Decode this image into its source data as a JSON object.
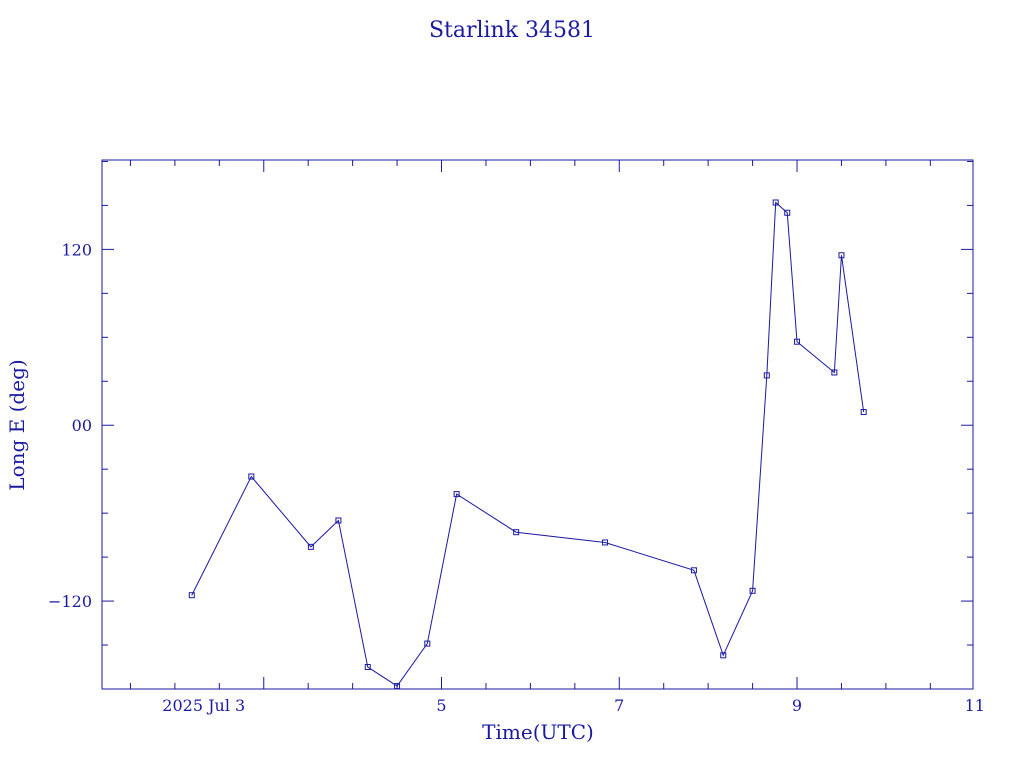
{
  "chart_data": {
    "type": "line",
    "title": "Starlink 34581",
    "xlabel": "Time(UTC)",
    "ylabel": "Long E (deg)",
    "x_tick_labels": [
      {
        "x": 3,
        "label": "2025 Jul  3"
      },
      {
        "x": 5,
        "label": "5"
      },
      {
        "x": 7,
        "label": "7"
      },
      {
        "x": 9,
        "label": "9"
      },
      {
        "x": 11,
        "label": "11"
      }
    ],
    "y_tick_labels": [
      {
        "y": 120,
        "label": "120"
      },
      {
        "y": 0,
        "label": "00"
      },
      {
        "y": -120,
        "label": "−120"
      }
    ],
    "xlim": [
      1.18,
      10.98
    ],
    "ylim": [
      -180,
      181
    ],
    "grid": false,
    "series": [
      {
        "x": [
          2.19,
          2.86,
          3.53,
          3.84,
          4.17,
          4.5,
          4.84,
          5.17,
          5.84,
          6.84,
          7.84,
          8.17,
          8.5,
          8.66,
          8.76,
          8.89,
          9.0,
          9.42,
          9.5,
          9.75
        ],
        "y": [
          -116,
          -35,
          -83,
          -65,
          -165,
          -178,
          -149,
          -47,
          -73,
          -80,
          -99,
          -157,
          -113,
          34,
          152,
          145,
          57,
          36,
          116,
          9
        ]
      }
    ],
    "colors": {
      "axis": "#1a1aa0",
      "line": "#1a1aa0",
      "text": "#1a1aa0"
    }
  }
}
